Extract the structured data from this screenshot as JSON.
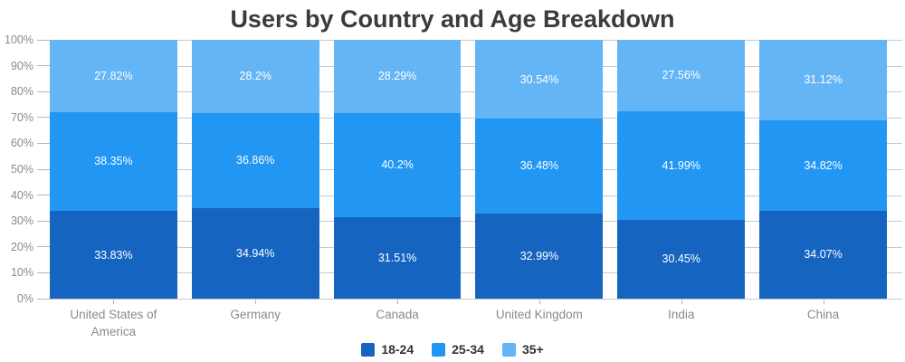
{
  "chart_data": {
    "type": "bar",
    "subtype": "stacked-100-percent-column",
    "title": "Users by Country and Age Breakdown",
    "categories": [
      "United States of America",
      "Germany",
      "Canada",
      "United Kingdom",
      "India",
      "China"
    ],
    "series": [
      {
        "name": "18-24",
        "color": "#1565C0",
        "values": [
          33.83,
          34.94,
          31.51,
          32.99,
          30.45,
          34.07
        ]
      },
      {
        "name": "25-34",
        "color": "#2196F3",
        "values": [
          38.35,
          36.86,
          40.2,
          36.48,
          41.99,
          34.82
        ]
      },
      {
        "name": "35+",
        "color": "#64B5F6",
        "values": [
          27.82,
          28.2,
          28.29,
          30.54,
          27.56,
          31.12
        ]
      }
    ],
    "ylim": [
      0,
      100
    ],
    "y_tick_step": 10,
    "y_tick_suffix": "%",
    "data_label_suffix": "%",
    "grid": true,
    "legend_position": "bottom"
  },
  "colors": {
    "background": "#ffffff",
    "title": "#3b3b3b",
    "axis_label": "#8a8a8a",
    "grid_line": "#c9c9c9",
    "tick": "#b5b5b5",
    "data_label": "#ffffff",
    "legend_text": "#333333"
  }
}
